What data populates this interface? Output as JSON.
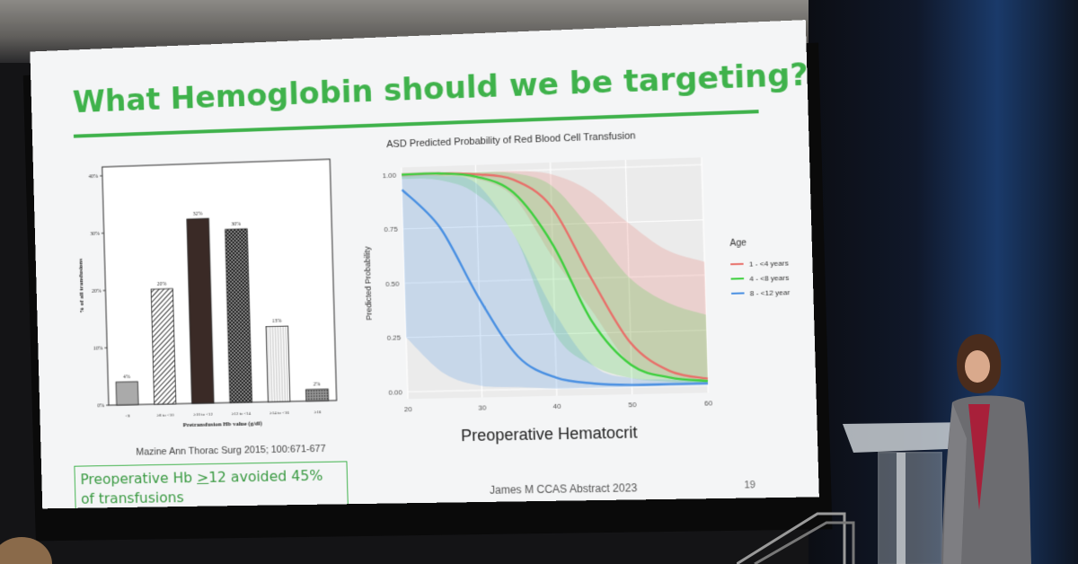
{
  "slide": {
    "title": "What Hemoglobin should we be targeting?",
    "slide_number": "19",
    "callout": {
      "line1_prefix": "Preoperative Hb ",
      "line1_underlined": ">",
      "line1_suffix": "12 avoided 45%",
      "line2": "of transfusions"
    },
    "left_citation": "Mazine Ann Thorac Surg 2015; 100:671-677",
    "right_citation": "James M CCAS Abstract 2023",
    "x_axis_caption": "Preoperative Hematocrit"
  },
  "chart_data": [
    {
      "type": "bar",
      "title": "",
      "xlabel": "Pretransfusion Hb value (g/dl)",
      "ylabel": "% of all transfusions",
      "ylim": [
        0,
        40
      ],
      "y_ticks": [
        "0%",
        "10%",
        "20%",
        "30%",
        "40%"
      ],
      "categories": [
        "<8",
        "≥8 to <10",
        "≥10 to <12",
        "≥12 to <14",
        "≥14 to <16",
        "≥16"
      ],
      "values": [
        4,
        20,
        32,
        30,
        13,
        2
      ],
      "value_labels": [
        "4%",
        "20%",
        "32%",
        "30%",
        "13%",
        "2%"
      ],
      "grid": false
    },
    {
      "type": "line",
      "title": "ASD Predicted Probability of Red Blood Cell Transfusion",
      "xlabel": "Preoperative Hematocrit",
      "ylabel": "Predicted Probability",
      "xlim": [
        20,
        60
      ],
      "ylim": [
        0,
        1
      ],
      "x_ticks": [
        "20",
        "30",
        "40",
        "50",
        "60"
      ],
      "y_ticks": [
        "0.00",
        "0.25",
        "0.50",
        "0.75",
        "1.00"
      ],
      "legend_title": "Age",
      "legend_position": "right",
      "grid": true,
      "series": [
        {
          "name": "1 - <4 years",
          "color": "#e8706a",
          "x": [
            20,
            25,
            30,
            35,
            40,
            45,
            50,
            55,
            60
          ],
          "y": [
            1.0,
            1.0,
            0.99,
            0.96,
            0.83,
            0.5,
            0.2,
            0.07,
            0.03
          ],
          "ci_lower": [
            0.99,
            0.99,
            0.97,
            0.88,
            0.6,
            0.35,
            0.1,
            0.04,
            0.02
          ],
          "ci_upper": [
            1.0,
            1.0,
            1.0,
            1.0,
            0.98,
            0.9,
            0.75,
            0.62,
            0.56
          ]
        },
        {
          "name": "4 - <8 years",
          "color": "#3ecf3e",
          "x": [
            20,
            25,
            30,
            35,
            40,
            45,
            50,
            55,
            60
          ],
          "y": [
            1.0,
            1.0,
            0.98,
            0.9,
            0.66,
            0.3,
            0.1,
            0.04,
            0.02
          ],
          "ci_lower": [
            0.98,
            0.97,
            0.9,
            0.7,
            0.25,
            0.1,
            0.04,
            0.02,
            0.01
          ],
          "ci_upper": [
            1.0,
            1.0,
            1.0,
            0.99,
            0.93,
            0.73,
            0.5,
            0.38,
            0.32
          ]
        },
        {
          "name": "8 - <12 year",
          "color": "#4a90e2",
          "x": [
            20,
            25,
            30,
            35,
            40,
            45,
            50,
            55,
            60
          ],
          "y": [
            0.93,
            0.75,
            0.42,
            0.15,
            0.05,
            0.02,
            0.01,
            0.01,
            0.01
          ],
          "ci_lower": [
            0.25,
            0.08,
            0.02,
            0.01,
            0.0,
            0.0,
            0.0,
            0.0,
            0.0
          ],
          "ci_upper": [
            1.0,
            0.99,
            0.95,
            0.7,
            0.35,
            0.1,
            0.04,
            0.03,
            0.02
          ]
        }
      ]
    }
  ]
}
